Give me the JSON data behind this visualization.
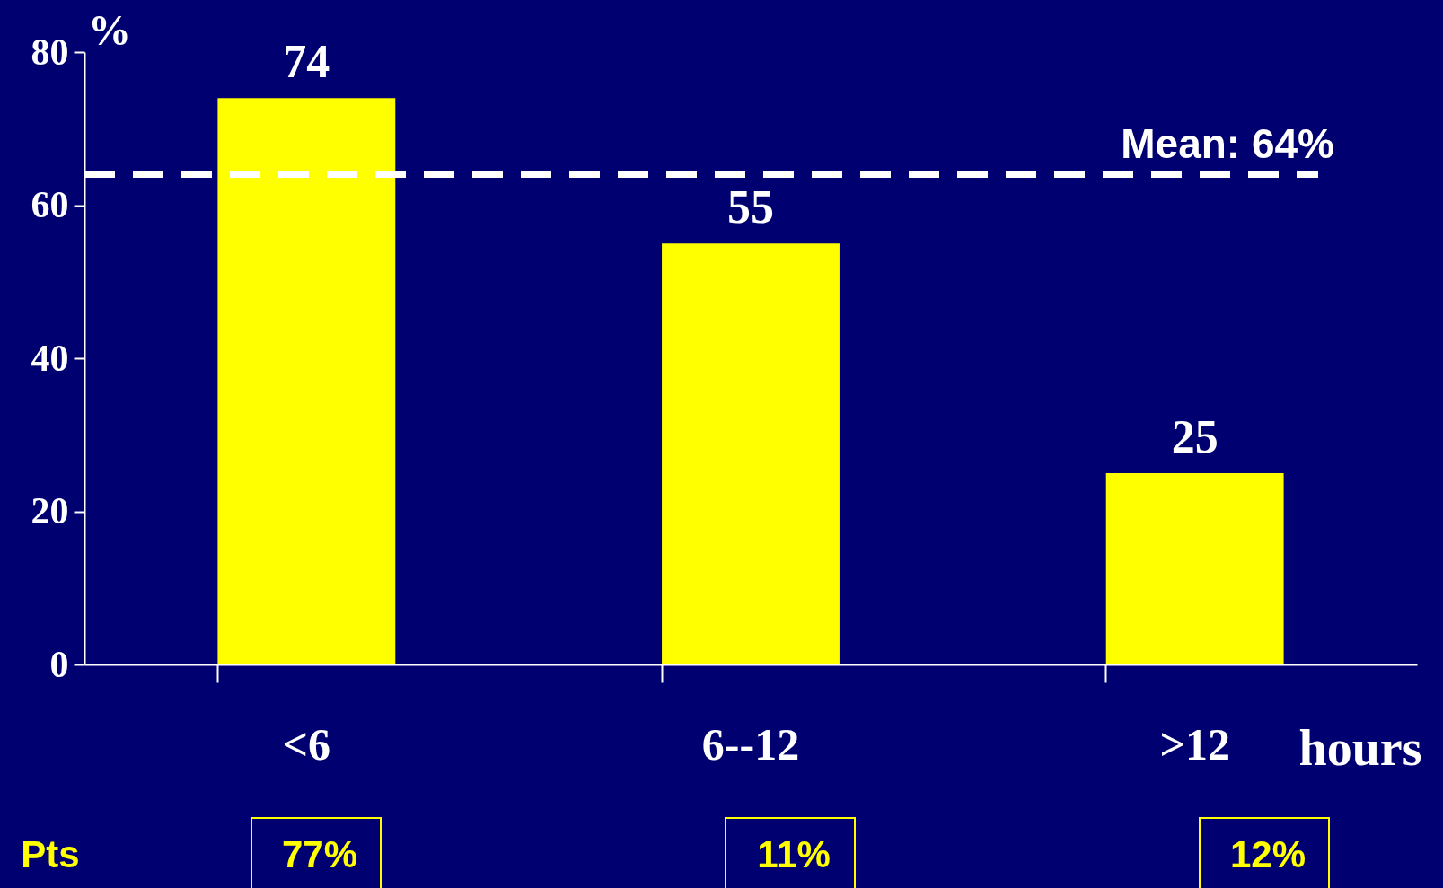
{
  "chart_data": {
    "type": "bar",
    "categories": [
      "<6",
      "6--12",
      ">12"
    ],
    "series": [
      {
        "color": "#ffff00",
        "values": [
          74,
          55,
          25
        ]
      }
    ],
    "ylabel": "%",
    "xlabel": "hours",
    "ylim": [
      0,
      80
    ],
    "yticks": [
      0,
      20,
      40,
      60,
      80
    ],
    "grid": false,
    "data_labels": true,
    "ref_lines": [
      {
        "axis": "y",
        "value": 64,
        "label": "Mean: 64%",
        "color": "#ffffff",
        "line_style": "dashed"
      }
    ],
    "annotations": [
      "Pts",
      "77%",
      "11%",
      "12%"
    ]
  }
}
